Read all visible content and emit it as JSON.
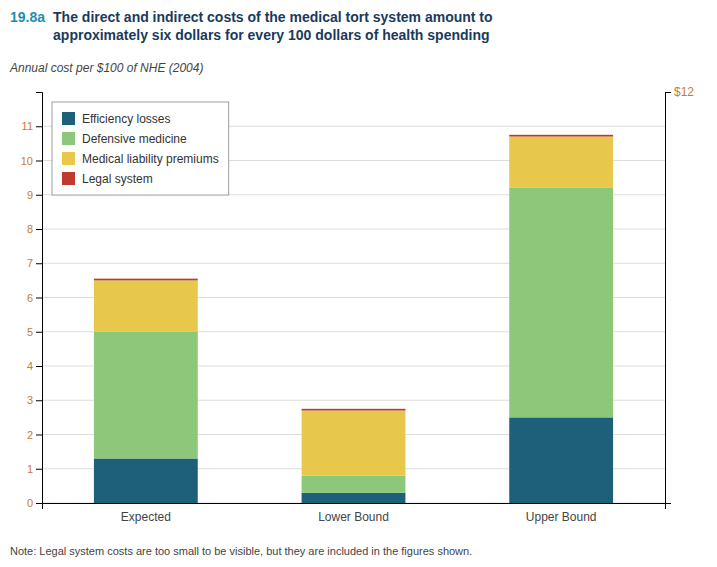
{
  "chart_data": {
    "type": "bar",
    "stacked": true,
    "title": "The direct and indirect costs of the medical tort system amount to\napproximately six dollars for every 100 dollars of health spending",
    "subtitle": "Annual cost per $100 of NHE (2004)",
    "annotations": [
      {
        "text": "19.8a"
      },
      {
        "text": "Note: Legal system costs are too small to be visible, but they are included in the figures shown."
      }
    ],
    "categories": [
      "Expected",
      "Lower Bound",
      "Upper Bound"
    ],
    "series": [
      {
        "name": "Efficiency losses",
        "color": "#1e5f7a",
        "values": [
          1.3,
          0.3,
          2.5
        ]
      },
      {
        "name": "Defensive medicine",
        "color": "#8dc87a",
        "values": [
          3.7,
          0.5,
          6.7
        ]
      },
      {
        "name": "Medical liability premiums",
        "color": "#e8c84a",
        "values": [
          1.5,
          1.9,
          1.5
        ]
      },
      {
        "name": "Legal system",
        "color": "#c0392b",
        "values": [
          0.05,
          0.05,
          0.05
        ]
      }
    ],
    "ylim": [
      0,
      12
    ],
    "yticks": [
      0,
      1,
      2,
      3,
      4,
      5,
      6,
      7,
      8,
      9,
      10,
      11
    ],
    "y2lim": [
      0,
      12
    ],
    "y2ticks": [
      {
        "value": 12,
        "label": "$12"
      }
    ],
    "grid": true,
    "legend": "upper left"
  }
}
